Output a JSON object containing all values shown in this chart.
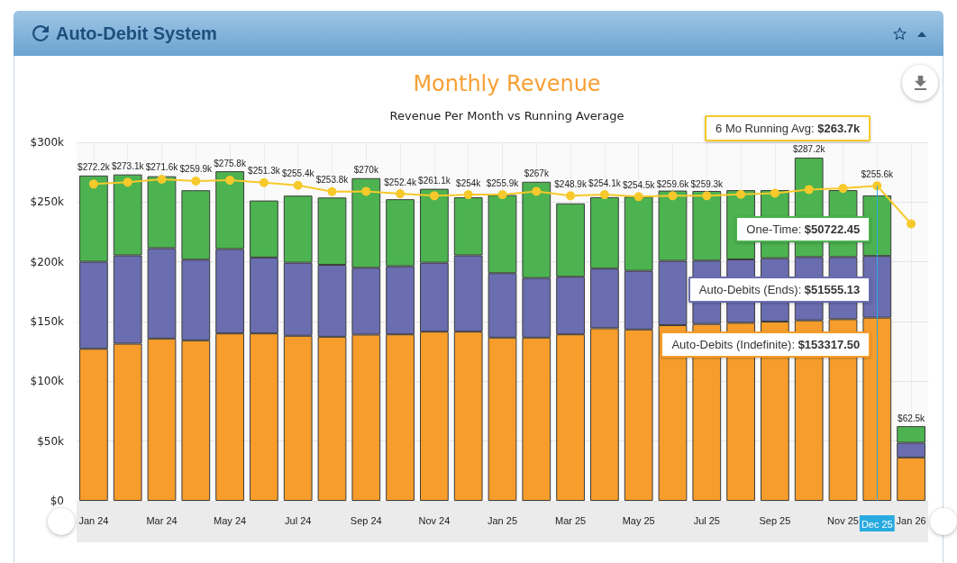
{
  "chart_data": {
    "type": "bar",
    "title": "Monthly Revenue",
    "subtitle": "Revenue Per Month vs Running Average",
    "categories": [
      "Jan 24",
      null,
      "Mar 24",
      null,
      "May 24",
      null,
      "Jul 24",
      null,
      "Sep 24",
      null,
      "Nov 24",
      null,
      "Jan 25",
      null,
      "Mar 25",
      null,
      "May 25",
      null,
      "Jul 25",
      null,
      "Sep 25",
      null,
      "Nov 25",
      "Dec 25",
      "Jan 26"
    ],
    "stacked": true,
    "series": [
      {
        "color": "#f79d2b",
        "values": [
          127200,
          131500,
          135800,
          134300,
          140100,
          140100,
          138100,
          137300,
          139100,
          139300,
          141600,
          141600,
          136600,
          136600,
          139300,
          144400,
          143400,
          147000,
          148000,
          149000,
          150000,
          151000,
          152000,
          153317.5,
          36300
        ]
      },
      {
        "color": "#6a6db0",
        "values": [
          72900,
          73900,
          75600,
          67500,
          70600,
          63500,
          61200,
          60200,
          55900,
          57000,
          57700,
          63800,
          53900,
          49900,
          48200,
          49900,
          49100,
          53800,
          53000,
          53000,
          53000,
          53000,
          52000,
          51555.13,
          12300
        ]
      },
      {
        "color": "#4cb350",
        "values": [
          72100,
          67700,
          60200,
          58100,
          65100,
          47700,
          56100,
          56300,
          75000,
          56100,
          61800,
          48600,
          65400,
          80500,
          61400,
          59800,
          62000,
          58800,
          58300,
          58000,
          57000,
          83200,
          56000,
          50722.45,
          13900
        ]
      },
      {
        "type": "line",
        "color": "#f7c92a",
        "values": [
          265100,
          266600,
          269100,
          267600,
          268300,
          266300,
          264000,
          258700,
          259000,
          257000,
          255300,
          256200,
          256200,
          259000,
          255300,
          256200,
          254500,
          255300,
          255300,
          256500,
          257500,
          260500,
          261500,
          263700,
          231800
        ]
      }
    ],
    "totals": [
      "$272.2k",
      "$273.1k",
      "$271.6k",
      "$259.9k",
      "$275.8k",
      "$251.3k",
      "$255.4k",
      "$253.8k",
      "$270k",
      "$252.4k",
      "$261.1k",
      "$254k",
      "$255.9k",
      "$267k",
      "$248.9k",
      "$254.1k",
      "$254.5k",
      "$259.6k",
      "$259.3k",
      null,
      null,
      "$287.2k",
      null,
      "$255.6k",
      "$62.5k"
    ],
    "annotations": [
      "Auto-Debit System",
      "Auto-Debits (Indefinite): $153317.50",
      "Auto-Debits (Ends): $51555.13",
      "One-Time: $50722.45",
      "6 Mo Running Avg: $263.7k"
    ],
    "ref_lines": [
      {
        "axis": "x",
        "value": "Dec 25",
        "color": "#29abe0"
      }
    ],
    "ylim": [
      0,
      300000
    ],
    "yticks": [
      {
        "value": 0,
        "label": "$0"
      },
      {
        "value": 50000,
        "label": "$50k"
      },
      {
        "value": 100000,
        "label": "$100k"
      },
      {
        "value": 150000,
        "label": "$150k"
      },
      {
        "value": 200000,
        "label": "$200k"
      },
      {
        "value": 250000,
        "label": "$250k"
      },
      {
        "value": 300000,
        "label": "$300k"
      }
    ],
    "grid": true,
    "marker": "circle"
  }
}
